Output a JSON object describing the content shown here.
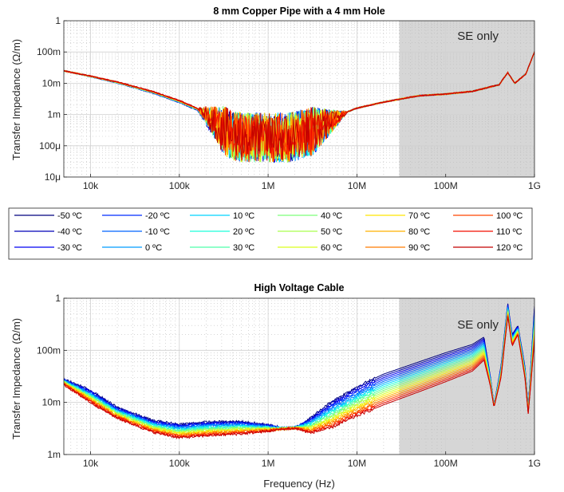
{
  "chart_data": [
    {
      "type": "line",
      "title": "8 mm Copper Pipe with a 4 mm Hole",
      "xlabel": "",
      "ylabel": "Transfer Impedance (Ω/m)",
      "xscale": "log",
      "yscale": "log",
      "xlim": [
        5000,
        1000000000
      ],
      "ylim": [
        1e-05,
        1
      ],
      "grid": true,
      "x_ticks": [
        10000,
        100000,
        1000000,
        10000000,
        100000000,
        1000000000
      ],
      "x_tick_labels": [
        "10k",
        "100k",
        "1M",
        "10M",
        "100M",
        "1G"
      ],
      "y_ticks": [
        1e-05,
        0.0001,
        0.001,
        0.01,
        0.1,
        1
      ],
      "y_tick_labels": [
        "10μ",
        "100μ",
        "1m",
        "10m",
        "100m",
        "1"
      ],
      "shaded_region": {
        "x_from": 30000000,
        "x_to": 1000000000,
        "label": "SE only"
      },
      "curve_x": [
        5000,
        10000,
        20000,
        50000,
        100000,
        200000,
        400000,
        1000000,
        2000000,
        5000000,
        10000000,
        20000000,
        50000000,
        100000000,
        200000000,
        400000000,
        500000000,
        600000000,
        800000000,
        1000000000
      ],
      "curve_y": [
        0.025,
        0.017,
        0.011,
        0.0055,
        0.0028,
        0.0012,
        0.00035,
        0.00025,
        0.00035,
        0.00075,
        0.0016,
        0.0025,
        0.004,
        0.0045,
        0.0055,
        0.009,
        0.022,
        0.01,
        0.02,
        0.1
      ],
      "noise_floor": 0.00032,
      "spread": "curves nearly overlap; lower temperatures slightly lower between 20k and 200k Hz"
    },
    {
      "type": "line",
      "title": "High Voltage Cable",
      "xlabel": "Frequency (Hz)",
      "ylabel": "Transfer Impedance (Ω/m)",
      "xscale": "log",
      "yscale": "log",
      "xlim": [
        5000,
        1000000000
      ],
      "ylim": [
        0.001,
        1
      ],
      "grid": true,
      "x_ticks": [
        10000,
        100000,
        1000000,
        10000000,
        100000000,
        1000000000
      ],
      "x_tick_labels": [
        "10k",
        "100k",
        "1M",
        "10M",
        "100M",
        "1G"
      ],
      "y_ticks": [
        0.001,
        0.01,
        0.1,
        1
      ],
      "y_tick_labels": [
        "1m",
        "10m",
        "100m",
        "1"
      ],
      "shaded_region": {
        "x_from": 30000000,
        "x_to": 1000000000,
        "label": "SE only"
      },
      "curve_x": [
        5000,
        10000,
        20000,
        50000,
        100000,
        200000,
        500000,
        1000000,
        1500000,
        2000000,
        3000000,
        5000000,
        10000000,
        20000000,
        50000000,
        100000000,
        200000000,
        270000000,
        320000000,
        350000000,
        420000000,
        500000000,
        560000000,
        650000000,
        780000000,
        850000000,
        1000000000
      ],
      "curve_y_low": [
        0.022,
        0.01,
        0.005,
        0.0027,
        0.0021,
        0.0023,
        0.0025,
        0.0028,
        0.0031,
        0.0032,
        0.0026,
        0.0032,
        0.0055,
        0.009,
        0.016,
        0.025,
        0.04,
        0.065,
        0.02,
        0.008,
        0.03,
        0.45,
        0.12,
        0.2,
        0.03,
        0.006,
        0.15
      ],
      "curve_y_high": [
        0.028,
        0.017,
        0.008,
        0.0045,
        0.0038,
        0.0042,
        0.0043,
        0.0037,
        0.0032,
        0.0033,
        0.005,
        0.01,
        0.02,
        0.035,
        0.06,
        0.09,
        0.13,
        0.18,
        0.03,
        0.009,
        0.05,
        0.8,
        0.2,
        0.3,
        0.05,
        0.008,
        0.7
      ],
      "noise_amp": 0.05
    }
  ],
  "legend": {
    "entries": [
      "-50 ºC",
      "-40 ºC",
      "-30 ºC",
      "-20 ºC",
      "-10 ºC",
      "0 ºC",
      "10 ºC",
      "20 ºC",
      "30 ºC",
      "40 ºC",
      "50 ºC",
      "60 ºC",
      "70 ºC",
      "80 ºC",
      "90 ºC",
      "100 ºC",
      "110 ºC",
      "120 ºC"
    ],
    "colors": [
      "#00007f",
      "#0000b8",
      "#0000f2",
      "#002cff",
      "#0064ff",
      "#009cff",
      "#00d4ff",
      "#1cffdb",
      "#4dffaa",
      "#7dff7a",
      "#aaff4d",
      "#dbff1c",
      "#ffe500",
      "#ffb000",
      "#ff7a00",
      "#ff4600",
      "#f20f00",
      "#c40000"
    ]
  },
  "colors": {
    "shade": "#d6d6d6",
    "grid": "#e6e6e6",
    "axis": "#262626"
  }
}
